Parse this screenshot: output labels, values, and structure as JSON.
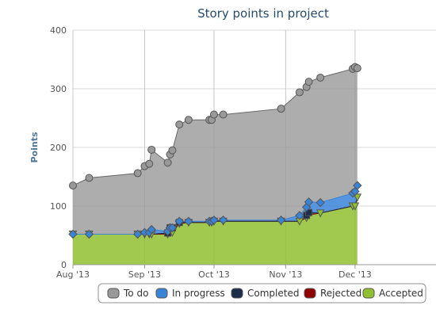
{
  "chart_data": {
    "type": "area",
    "title": "Story points in project",
    "ylabel": "Points",
    "xlabel": "",
    "ylim": [
      0,
      400
    ],
    "yticks": [
      "0",
      "100",
      "200",
      "300",
      "400"
    ],
    "xlim": [
      "2013-08-01",
      "2014-01-05"
    ],
    "xticks": [
      {
        "date": "2013-08-01",
        "label": "Aug '13"
      },
      {
        "date": "2013-09-01",
        "label": "Sep '13"
      },
      {
        "date": "2013-10-01",
        "label": "Oct '13"
      },
      {
        "date": "2013-11-01",
        "label": "Nov '13"
      },
      {
        "date": "2013-12-01",
        "label": "Dec '13"
      }
    ],
    "grid": true,
    "stacked": true,
    "legend_position": "bottom",
    "x": [
      "2013-08-01",
      "2013-08-08",
      "2013-08-29",
      "2013-09-01",
      "2013-09-03",
      "2013-09-04",
      "2013-09-11",
      "2013-09-12",
      "2013-09-13",
      "2013-09-16",
      "2013-09-20",
      "2013-09-29",
      "2013-09-30",
      "2013-10-01",
      "2013-10-05",
      "2013-10-30",
      "2013-11-07",
      "2013-11-10",
      "2013-11-11",
      "2013-11-16",
      "2013-11-30",
      "2013-12-01",
      "2013-12-02"
    ],
    "series": [
      {
        "name": "Accepted",
        "color": "#90c030",
        "marker": "triangle",
        "values": [
          52,
          52,
          52,
          52,
          52,
          52,
          52,
          55,
          55,
          70,
          72,
          72,
          72,
          74,
          74,
          74,
          74,
          80,
          85,
          88,
          100,
          100,
          115
        ]
      },
      {
        "name": "Rejected",
        "color": "#910000",
        "marker": "square",
        "values": [
          0,
          0,
          0,
          0,
          0,
          0,
          0,
          0,
          0,
          0,
          0,
          0,
          0,
          0,
          0,
          0,
          0,
          0,
          0,
          0,
          0,
          0,
          0
        ]
      },
      {
        "name": "Completed",
        "color": "#1a2d4a",
        "marker": "square",
        "values": [
          0,
          0,
          0,
          0,
          0,
          0,
          2,
          8,
          8,
          2,
          0,
          0,
          0,
          0,
          0,
          0,
          0,
          4,
          4,
          0,
          0,
          0,
          0
        ]
      },
      {
        "name": "In progress",
        "color": "#3a84d8",
        "marker": "diamond",
        "values": [
          0,
          0,
          0,
          3,
          3,
          8,
          3,
          0,
          0,
          2,
          2,
          2,
          2,
          2,
          2,
          2,
          10,
          14,
          18,
          18,
          22,
          25,
          20
        ]
      },
      {
        "name": "To do",
        "color": "#999999",
        "marker": "circle",
        "values": [
          83,
          96,
          104,
          113,
          117,
          136,
          117,
          125,
          132,
          165,
          173,
          173,
          173,
          180,
          180,
          190,
          210,
          205,
          205,
          213,
          212,
          212,
          200
        ]
      }
    ]
  },
  "legend": {
    "items": [
      {
        "label": "To do",
        "color": "#999999"
      },
      {
        "label": "In progress",
        "color": "#3a84d8"
      },
      {
        "label": "Completed",
        "color": "#1a2d4a"
      },
      {
        "label": "Rejected",
        "color": "#910000"
      },
      {
        "label": "Accepted",
        "color": "#90c030"
      }
    ]
  }
}
